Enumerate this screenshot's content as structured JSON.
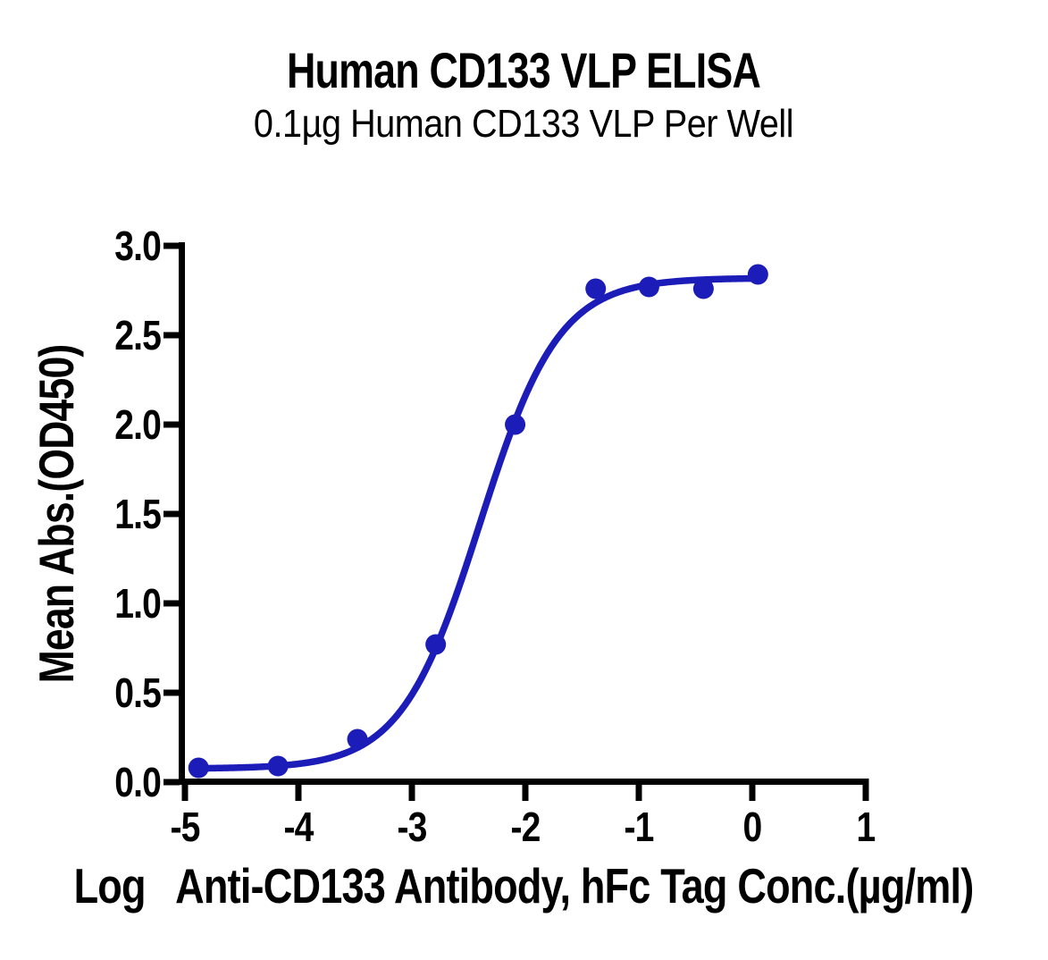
{
  "chart_data": {
    "type": "scatter",
    "title": "Human CD133 VLP ELISA",
    "subtitle": "0.1µg Human CD133 VLP Per Well",
    "xlabel": "Log  Anti-CD133 Antibody, hFc Tag Conc.(µg/ml)",
    "ylabel": "Mean Abs.(OD450)",
    "x": [
      -4.88,
      -4.18,
      -3.48,
      -2.79,
      -2.09,
      -1.38,
      -0.91,
      -0.43,
      0.05
    ],
    "y": [
      0.08,
      0.09,
      0.24,
      0.77,
      2.0,
      2.76,
      2.77,
      2.76,
      2.84
    ],
    "xlim": [
      -5,
      1
    ],
    "ylim": [
      0,
      3
    ],
    "xticks": [
      -5,
      -4,
      -3,
      -2,
      -1,
      0,
      1
    ],
    "xtick_labels": [
      "-5",
      "-4",
      "-3",
      "-2",
      "-1",
      "0",
      "1"
    ],
    "yticks": [
      0,
      0.5,
      1,
      1.5,
      2,
      2.5,
      3
    ],
    "ytick_labels": [
      "0.0",
      "0.5",
      "1.0",
      "1.5",
      "2.0",
      "2.5",
      "3.0"
    ],
    "fit": {
      "model": "4PL",
      "bottom": 0.075,
      "top": 2.82,
      "log_ec50": -2.4,
      "hill": 1.25
    },
    "series_color": "#1c1cb8",
    "axis_color": "#000000",
    "marker": "circle",
    "marker_radius": 11.5,
    "grid": false,
    "legend": null
  }
}
